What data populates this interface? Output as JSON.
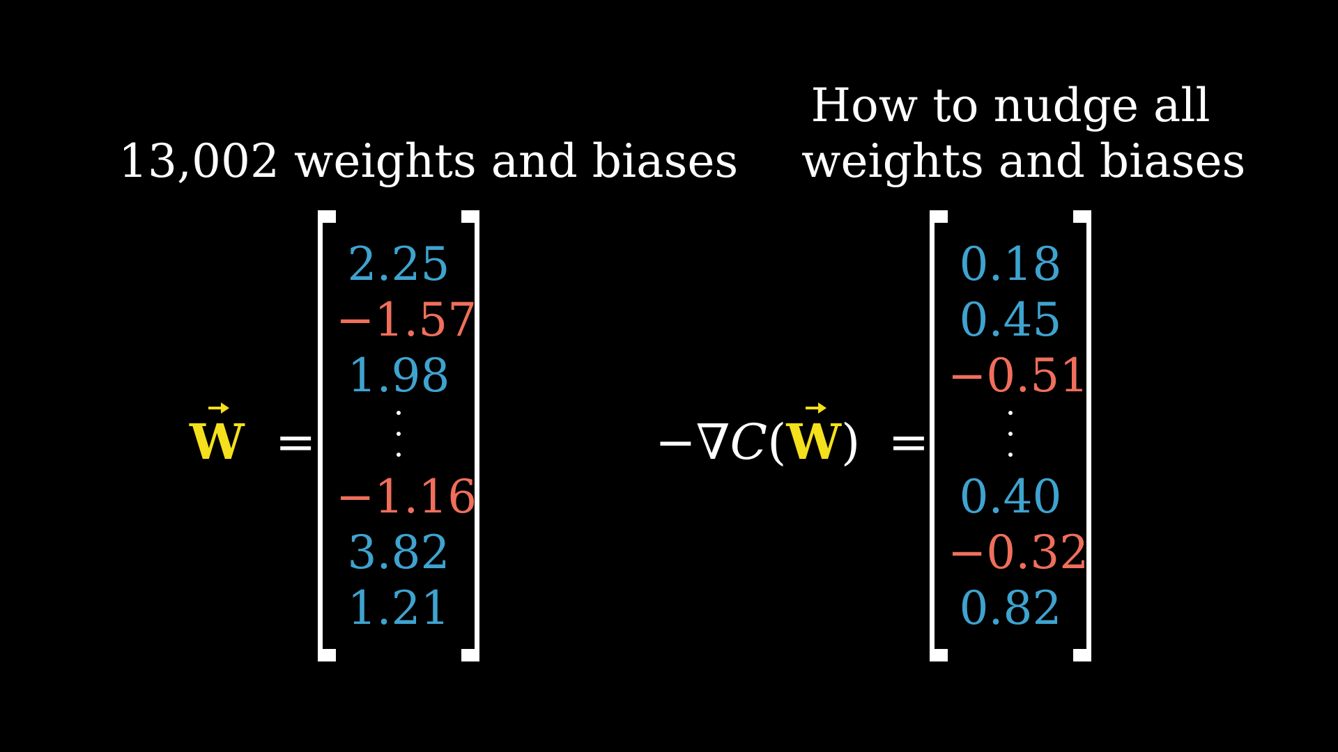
{
  "left": {
    "heading": "13,002 weights and biases",
    "symbol": "W",
    "equals": "=",
    "entries": [
      {
        "text": "2.25",
        "sign": "pos"
      },
      {
        "text": "−1.57",
        "sign": "neg"
      },
      {
        "text": "1.98",
        "sign": "pos"
      },
      {
        "text": "⋮",
        "sign": "dots"
      },
      {
        "text": "−1.16",
        "sign": "neg"
      },
      {
        "text": "3.82",
        "sign": "pos"
      },
      {
        "text": "1.21",
        "sign": "pos"
      }
    ]
  },
  "right": {
    "heading_line1": "How to nudge all",
    "heading_line2": "weights and biases",
    "minus": "−",
    "nabla": "∇",
    "cost_symbol": "C",
    "open_paren": "(",
    "symbol": "W",
    "close_paren": ")",
    "equals": "=",
    "entries": [
      {
        "text": "0.18",
        "sign": "pos"
      },
      {
        "text": "0.45",
        "sign": "pos"
      },
      {
        "text": "−0.51",
        "sign": "neg"
      },
      {
        "text": "⋮",
        "sign": "dots"
      },
      {
        "text": "0.40",
        "sign": "pos"
      },
      {
        "text": "−0.32",
        "sign": "neg"
      },
      {
        "text": "0.82",
        "sign": "pos"
      }
    ]
  },
  "colors": {
    "positive": "#3fa3cf",
    "negative": "#ef6f5b",
    "vector_symbol": "#f4e01c",
    "text": "#ffffff",
    "background": "#000000"
  }
}
